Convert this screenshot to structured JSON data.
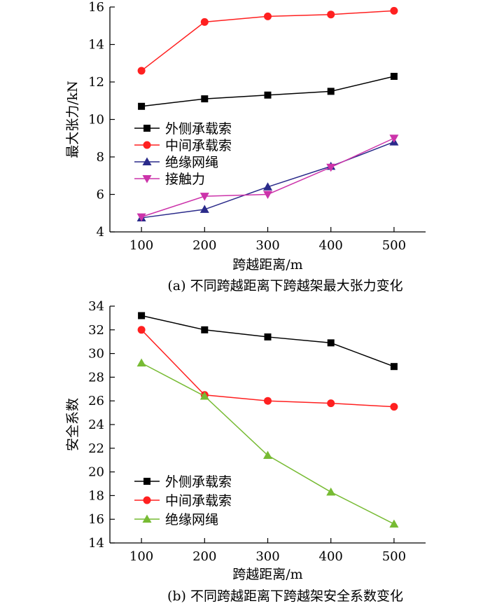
{
  "chart_data": [
    {
      "type": "line",
      "caption": "(a)  不同跨越距离下跨越架最大张力变化",
      "xlabel": "跨越距离/m",
      "ylabel": "最大张力/kN",
      "x": [
        100,
        200,
        300,
        400,
        500
      ],
      "xlim": [
        50,
        550
      ],
      "ylim": [
        4,
        16
      ],
      "yticks": [
        4,
        6,
        8,
        10,
        12,
        14,
        16
      ],
      "grid": false,
      "legend_position": "center-left",
      "series": [
        {
          "name": "外侧承载索",
          "color": "#000000",
          "marker": "square",
          "values": [
            10.7,
            11.1,
            11.3,
            11.5,
            12.3
          ]
        },
        {
          "name": "中间承载索",
          "color": "#ff2020",
          "marker": "circle",
          "values": [
            12.6,
            15.2,
            15.5,
            15.6,
            15.8
          ]
        },
        {
          "name": "绝缘网绳",
          "color": "#2a2a8a",
          "marker": "triangle-up",
          "values": [
            4.75,
            5.2,
            6.4,
            7.5,
            8.8
          ]
        },
        {
          "name": "接触力",
          "color": "#cc33aa",
          "marker": "triangle-down",
          "values": [
            4.8,
            5.9,
            6.0,
            7.45,
            9.0
          ]
        }
      ]
    },
    {
      "type": "line",
      "caption": "(b)  不同跨越距离下跨越架安全系数变化",
      "xlabel": "跨越距离/m",
      "ylabel": "安全系数",
      "x": [
        100,
        200,
        300,
        400,
        500
      ],
      "xlim": [
        50,
        550
      ],
      "ylim": [
        14,
        34
      ],
      "yticks": [
        14,
        16,
        18,
        20,
        22,
        24,
        26,
        28,
        30,
        32,
        34
      ],
      "grid": false,
      "legend_position": "bottom-left",
      "series": [
        {
          "name": "外侧承载索",
          "color": "#000000",
          "marker": "square",
          "values": [
            33.2,
            32.0,
            31.4,
            30.9,
            28.9
          ]
        },
        {
          "name": "中间承载索",
          "color": "#ff2020",
          "marker": "circle",
          "values": [
            32.0,
            26.5,
            26.0,
            25.8,
            25.5
          ]
        },
        {
          "name": "绝缘网绳",
          "color": "#77bb33",
          "marker": "triangle-up",
          "values": [
            29.2,
            26.4,
            21.4,
            18.3,
            15.6
          ]
        }
      ]
    }
  ]
}
